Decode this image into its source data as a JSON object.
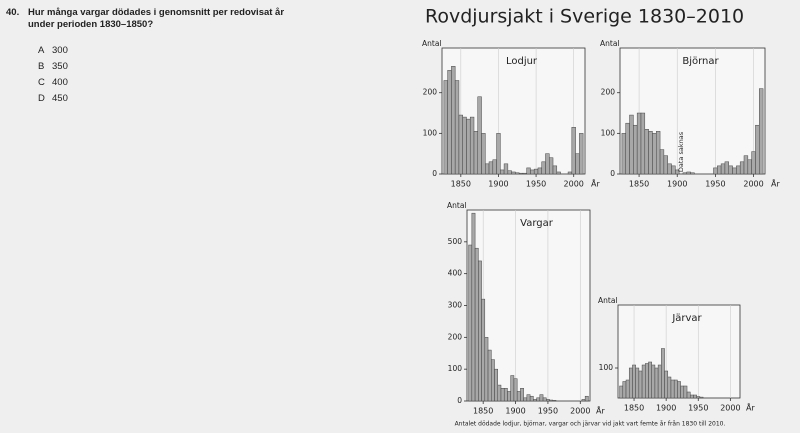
{
  "question": {
    "number": "40.",
    "text": "Hur många vargar dödades i genomsnitt per redovisat år under perioden 1830–1850?",
    "options": [
      {
        "letter": "A",
        "text": 300
      },
      {
        "letter": "B",
        "text": 350
      },
      {
        "letter": "C",
        "text": 400
      },
      {
        "letter": "D",
        "text": 450
      }
    ]
  },
  "title": "Rovdjursjakt i Sverige 1830–2010",
  "caption": "Antalet dödade lodjur, björnar, vargar och järvar vid jakt vart femte år från 1830 till 2010.",
  "chart_data": [
    {
      "type": "bar",
      "title": "Lodjur",
      "x_label": "År",
      "y_label": "Antal",
      "color": "#a8a8a8",
      "x": [
        1830,
        1835,
        1840,
        1845,
        1850,
        1855,
        1860,
        1865,
        1870,
        1875,
        1880,
        1885,
        1890,
        1895,
        1900,
        1905,
        1910,
        1915,
        1920,
        1925,
        1930,
        1935,
        1940,
        1945,
        1950,
        1955,
        1960,
        1965,
        1970,
        1975,
        1980,
        1985,
        1990,
        1995,
        2000,
        2005,
        2010
      ],
      "values": [
        230,
        255,
        265,
        230,
        145,
        140,
        135,
        140,
        105,
        190,
        100,
        25,
        30,
        35,
        100,
        10,
        25,
        8,
        5,
        3,
        2,
        2,
        15,
        10,
        12,
        15,
        30,
        50,
        40,
        20,
        5,
        0,
        0,
        5,
        115,
        50,
        100
      ],
      "xlim": [
        1825,
        2015
      ],
      "xticks": [
        1850,
        1900,
        1950,
        2000
      ],
      "ylim": [
        0,
        310
      ],
      "yticks": [
        0,
        100,
        200
      ]
    },
    {
      "type": "bar",
      "title": "Björnar",
      "x_label": "År",
      "y_label": "Antal",
      "color": "#a8a8a8",
      "annotation": "Data saknas",
      "x": [
        1830,
        1835,
        1840,
        1845,
        1850,
        1855,
        1860,
        1865,
        1870,
        1875,
        1880,
        1885,
        1890,
        1895,
        1900,
        1905,
        1910,
        1915,
        1920,
        1925,
        1930,
        1935,
        1940,
        1945,
        1950,
        1955,
        1960,
        1965,
        1970,
        1975,
        1980,
        1985,
        1990,
        1995,
        2000,
        2005,
        2010
      ],
      "values": [
        100,
        125,
        145,
        120,
        150,
        150,
        110,
        105,
        100,
        105,
        60,
        45,
        25,
        20,
        10,
        null,
        3,
        5,
        3,
        0,
        0,
        0,
        0,
        0,
        15,
        20,
        25,
        30,
        20,
        15,
        20,
        30,
        45,
        35,
        55,
        120,
        210
      ],
      "xlim": [
        1825,
        2015
      ],
      "xticks": [
        1850,
        1900,
        1950,
        2000
      ],
      "ylim": [
        0,
        310
      ],
      "yticks": [
        0,
        100,
        200
      ]
    },
    {
      "type": "bar",
      "title": "Vargar",
      "x_label": "År",
      "y_label": "Antal",
      "color": "#a8a8a8",
      "x": [
        1830,
        1835,
        1840,
        1845,
        1850,
        1855,
        1860,
        1865,
        1870,
        1875,
        1880,
        1885,
        1890,
        1895,
        1900,
        1905,
        1910,
        1915,
        1920,
        1925,
        1930,
        1935,
        1940,
        1945,
        1950,
        1955,
        1960,
        1965,
        1970,
        1975,
        1980,
        1985,
        1990,
        1995,
        2000,
        2005,
        2010
      ],
      "values": [
        490,
        590,
        480,
        440,
        320,
        200,
        160,
        130,
        100,
        50,
        40,
        40,
        30,
        80,
        70,
        30,
        40,
        10,
        20,
        15,
        5,
        10,
        20,
        10,
        5,
        3,
        2,
        0,
        0,
        0,
        0,
        0,
        0,
        0,
        0,
        5,
        15
      ],
      "xlim": [
        1825,
        2015
      ],
      "xticks": [
        1850,
        1900,
        1950,
        2000
      ],
      "ylim": [
        0,
        600
      ],
      "yticks": [
        0,
        100,
        200,
        300,
        400,
        500
      ]
    },
    {
      "type": "bar",
      "title": "Järvar",
      "x_label": "År",
      "y_label": "Antal",
      "color": "#a8a8a8",
      "x": [
        1830,
        1835,
        1840,
        1845,
        1850,
        1855,
        1860,
        1865,
        1870,
        1875,
        1880,
        1885,
        1890,
        1895,
        1900,
        1905,
        1910,
        1915,
        1920,
        1925,
        1930,
        1935,
        1940,
        1945,
        1950,
        1955,
        1960,
        1965,
        1970,
        1975,
        1980,
        1985,
        1990,
        1995,
        2000,
        2005,
        2010
      ],
      "values": [
        40,
        55,
        60,
        100,
        110,
        100,
        90,
        110,
        115,
        120,
        110,
        100,
        110,
        165,
        90,
        70,
        60,
        60,
        55,
        40,
        40,
        20,
        10,
        10,
        5,
        3,
        0,
        0,
        0,
        0,
        0,
        0,
        0,
        0,
        0,
        0,
        0
      ],
      "xlim": [
        1825,
        2015
      ],
      "xticks": [
        1850,
        1900,
        1950,
        2000
      ],
      "ylim": [
        0,
        310
      ],
      "yticks": [
        100
      ]
    }
  ]
}
